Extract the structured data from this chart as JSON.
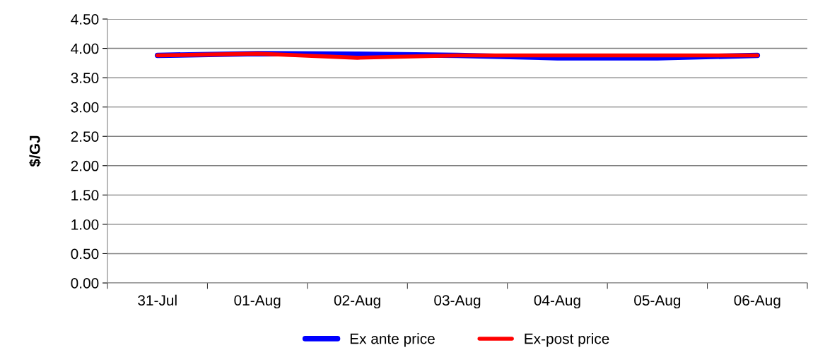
{
  "chart_data": {
    "type": "line",
    "ylabel": "$/GJ",
    "categories": [
      "31-Jul",
      "01-Aug",
      "02-Aug",
      "03-Aug",
      "04-Aug",
      "05-Aug",
      "06-Aug"
    ],
    "series": [
      {
        "name": "Ex ante price",
        "color": "#0000ff",
        "values": [
          3.88,
          3.91,
          3.9,
          3.88,
          3.84,
          3.84,
          3.88
        ]
      },
      {
        "name": "Ex-post price",
        "color": "#ff0000",
        "values": [
          3.88,
          3.91,
          3.84,
          3.88,
          3.88,
          3.88,
          3.88
        ]
      }
    ],
    "ylim": [
      0,
      4.5
    ],
    "yticks": [
      {
        "value": 0,
        "label": "0.00"
      },
      {
        "value": 0.5,
        "label": "0.50"
      },
      {
        "value": 1,
        "label": "1.00"
      },
      {
        "value": 1.5,
        "label": "1.50"
      },
      {
        "value": 2,
        "label": "2.00"
      },
      {
        "value": 2.5,
        "label": "2.50"
      },
      {
        "value": 3,
        "label": "3.00"
      },
      {
        "value": 3.5,
        "label": "3.50"
      },
      {
        "value": 4,
        "label": "4.00"
      },
      {
        "value": 4.5,
        "label": "4.50"
      }
    ],
    "grid": "y",
    "legend": "bottom",
    "marker": "none",
    "line_style": "solid"
  }
}
